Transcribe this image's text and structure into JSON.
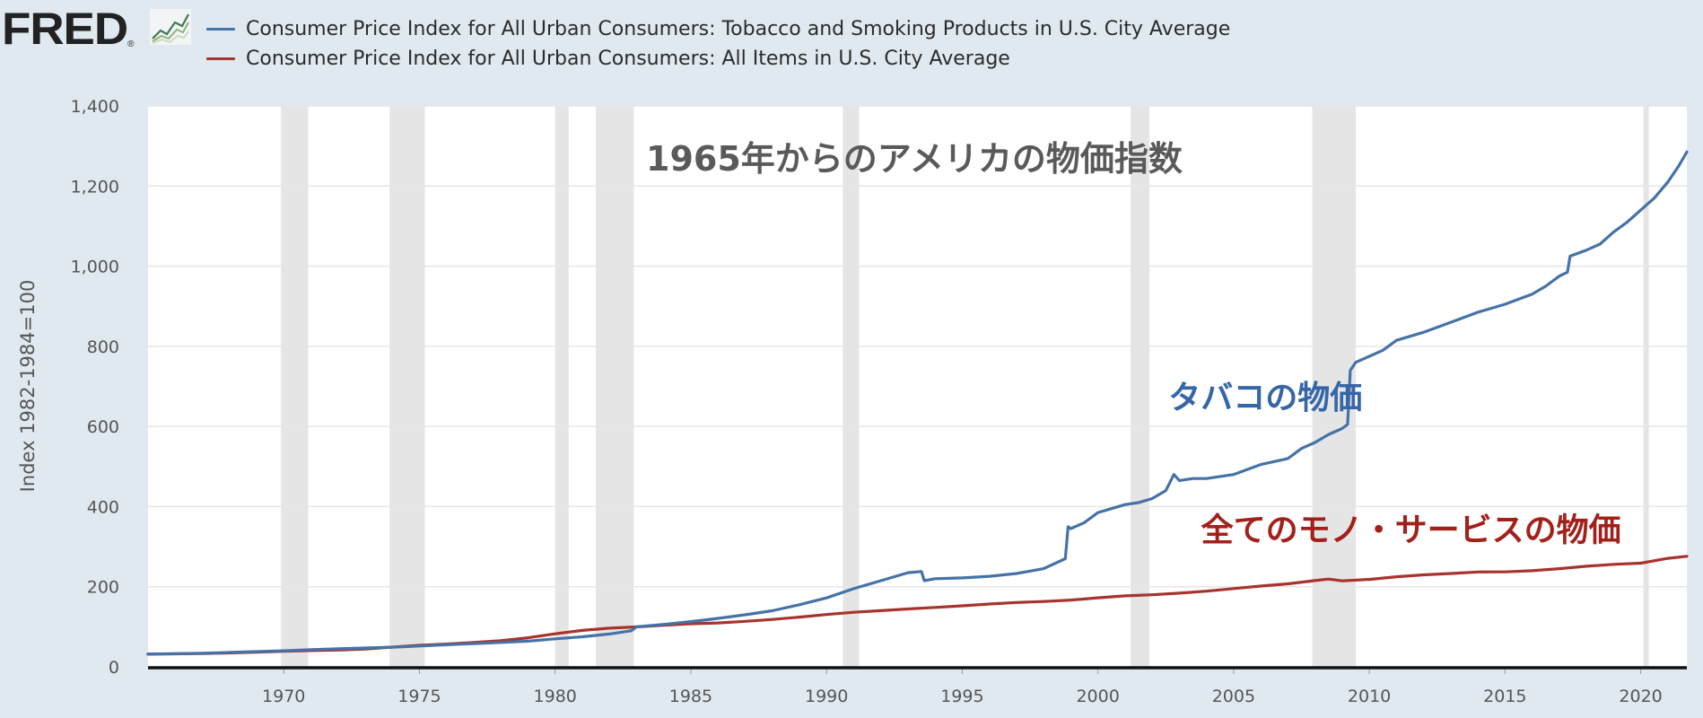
{
  "header": {
    "logo_text": "FRED",
    "logo_mark": "®",
    "logo_icon": "line-graph-icon"
  },
  "colors": {
    "tobacco": "#4572a7",
    "all_items": "#a8332e",
    "recession": "#e5e5e5",
    "annotation_tobacco": "#3566a8",
    "annotation_all_items": "#a3201a"
  },
  "chart_data": {
    "type": "line",
    "title": "1965年からのアメリカの物価指数",
    "ylabel": "Index 1982-1984=100",
    "xlim": [
      1965,
      2021.7
    ],
    "ylim": [
      0,
      1400
    ],
    "yticks": [
      0,
      200,
      400,
      600,
      800,
      1000,
      1200,
      1400
    ],
    "ytick_labels": [
      "0",
      "200",
      "400",
      "600",
      "800",
      "1,000",
      "1,200",
      "1,400"
    ],
    "xticks": [
      1970,
      1975,
      1980,
      1985,
      1990,
      1995,
      2000,
      2005,
      2010,
      2015,
      2020
    ],
    "xtick_labels": [
      "1970",
      "1975",
      "1980",
      "1985",
      "1990",
      "1995",
      "2000",
      "2005",
      "2010",
      "2015",
      "2020"
    ],
    "grid": true,
    "legend_position": "top",
    "recessions": [
      [
        1969.9,
        1970.9
      ],
      [
        1973.9,
        1975.2
      ],
      [
        1980.0,
        1980.5
      ],
      [
        1981.5,
        1982.9
      ],
      [
        1990.6,
        1991.2
      ],
      [
        2001.2,
        2001.9
      ],
      [
        2007.9,
        2009.5
      ],
      [
        2020.1,
        2020.3
      ]
    ],
    "annotations": [
      {
        "text": "タバコの物価",
        "series": "tobacco",
        "x": 2002.6,
        "y": 645
      },
      {
        "text": "全てのモノ・サービスの物価",
        "series": "all_items",
        "x": 2003.8,
        "y": 315
      }
    ],
    "series": [
      {
        "key": "tobacco",
        "name": "Consumer Price Index for All Urban Consumers: Tobacco and Smoking Products in U.S. City Average",
        "points": [
          [
            1965,
            32
          ],
          [
            1966,
            33
          ],
          [
            1967,
            34
          ],
          [
            1968,
            36
          ],
          [
            1969,
            38
          ],
          [
            1970,
            40
          ],
          [
            1971,
            43
          ],
          [
            1972,
            45
          ],
          [
            1973,
            47
          ],
          [
            1974,
            49
          ],
          [
            1975,
            52
          ],
          [
            1976,
            55
          ],
          [
            1977,
            58
          ],
          [
            1978,
            61
          ],
          [
            1979,
            64
          ],
          [
            1980,
            70
          ],
          [
            1981,
            75
          ],
          [
            1982,
            82
          ],
          [
            1982.8,
            90
          ],
          [
            1983,
            100
          ],
          [
            1984,
            106
          ],
          [
            1985,
            113
          ],
          [
            1986,
            121
          ],
          [
            1987,
            130
          ],
          [
            1988,
            140
          ],
          [
            1989,
            155
          ],
          [
            1990,
            172
          ],
          [
            1991,
            195
          ],
          [
            1992,
            215
          ],
          [
            1993,
            235
          ],
          [
            1993.5,
            238
          ],
          [
            1993.6,
            215
          ],
          [
            1994,
            220
          ],
          [
            1995,
            222
          ],
          [
            1996,
            226
          ],
          [
            1997,
            233
          ],
          [
            1998,
            245
          ],
          [
            1998.8,
            270
          ],
          [
            1998.9,
            350
          ],
          [
            1999,
            345
          ],
          [
            1999.5,
            360
          ],
          [
            2000,
            385
          ],
          [
            2000.5,
            395
          ],
          [
            2001,
            405
          ],
          [
            2001.5,
            410
          ],
          [
            2002,
            420
          ],
          [
            2002.5,
            440
          ],
          [
            2002.8,
            480
          ],
          [
            2003,
            465
          ],
          [
            2003.5,
            470
          ],
          [
            2004,
            470
          ],
          [
            2005,
            480
          ],
          [
            2006,
            505
          ],
          [
            2007,
            520
          ],
          [
            2007.5,
            545
          ],
          [
            2008,
            560
          ],
          [
            2008.5,
            580
          ],
          [
            2009.0,
            595
          ],
          [
            2009.2,
            605
          ],
          [
            2009.3,
            740
          ],
          [
            2009.5,
            760
          ],
          [
            2010,
            775
          ],
          [
            2010.5,
            790
          ],
          [
            2011,
            815
          ],
          [
            2012,
            835
          ],
          [
            2013,
            860
          ],
          [
            2014,
            885
          ],
          [
            2015,
            905
          ],
          [
            2016,
            930
          ],
          [
            2016.5,
            950
          ],
          [
            2017,
            975
          ],
          [
            2017.3,
            985
          ],
          [
            2017.4,
            1025
          ],
          [
            2018,
            1040
          ],
          [
            2018.5,
            1055
          ],
          [
            2019,
            1085
          ],
          [
            2019.5,
            1110
          ],
          [
            2020,
            1140
          ],
          [
            2020.5,
            1170
          ],
          [
            2021,
            1210
          ],
          [
            2021.4,
            1250
          ],
          [
            2021.7,
            1285
          ]
        ]
      },
      {
        "key": "all_items",
        "name": "Consumer Price Index for All Urban Consumers: All Items in U.S. City Average",
        "points": [
          [
            1965,
            31.5
          ],
          [
            1966,
            32.4
          ],
          [
            1967,
            33.4
          ],
          [
            1968,
            34.8
          ],
          [
            1969,
            36.7
          ],
          [
            1970,
            38.8
          ],
          [
            1971,
            40.5
          ],
          [
            1972,
            41.8
          ],
          [
            1973,
            44.4
          ],
          [
            1974,
            49.3
          ],
          [
            1975,
            53.8
          ],
          [
            1976,
            56.9
          ],
          [
            1977,
            60.6
          ],
          [
            1978,
            65.2
          ],
          [
            1979,
            72.6
          ],
          [
            1980,
            82.4
          ],
          [
            1981,
            90.9
          ],
          [
            1982,
            96.5
          ],
          [
            1983,
            99.6
          ],
          [
            1984,
            103.9
          ],
          [
            1985,
            107.6
          ],
          [
            1986,
            109.6
          ],
          [
            1987,
            113.6
          ],
          [
            1988,
            118.3
          ],
          [
            1989,
            124.0
          ],
          [
            1990,
            130.7
          ],
          [
            1991,
            136.2
          ],
          [
            1992,
            140.3
          ],
          [
            1993,
            144.5
          ],
          [
            1994,
            148.2
          ],
          [
            1995,
            152.4
          ],
          [
            1996,
            156.9
          ],
          [
            1997,
            160.5
          ],
          [
            1998,
            163.0
          ],
          [
            1999,
            166.6
          ],
          [
            2000,
            172.2
          ],
          [
            2001,
            177.1
          ],
          [
            2002,
            179.9
          ],
          [
            2003,
            184.0
          ],
          [
            2004,
            188.9
          ],
          [
            2005,
            195.3
          ],
          [
            2006,
            201.6
          ],
          [
            2007,
            207.3
          ],
          [
            2008,
            215.3
          ],
          [
            2008.5,
            219.0
          ],
          [
            2009,
            214.5
          ],
          [
            2010,
            218.1
          ],
          [
            2011,
            224.9
          ],
          [
            2012,
            229.6
          ],
          [
            2013,
            233.0
          ],
          [
            2014,
            236.7
          ],
          [
            2015,
            237.0
          ],
          [
            2016,
            240.0
          ],
          [
            2017,
            245.1
          ],
          [
            2018,
            251.1
          ],
          [
            2019,
            255.7
          ],
          [
            2020,
            258.8
          ],
          [
            2021,
            270.9
          ],
          [
            2021.7,
            276.0
          ]
        ]
      }
    ]
  }
}
